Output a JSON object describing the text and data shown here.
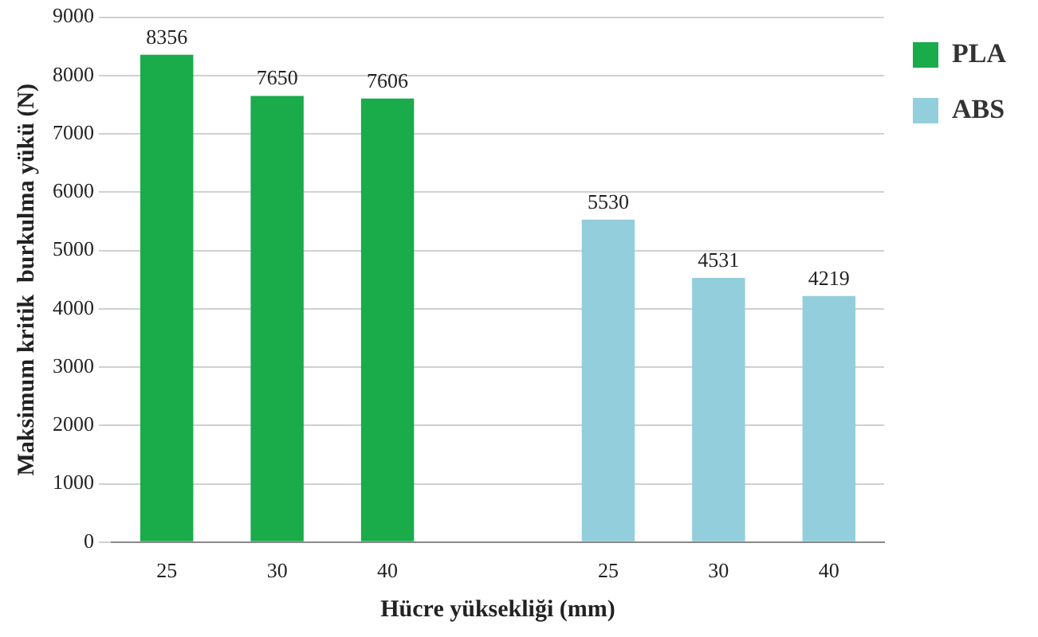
{
  "chart_data": {
    "type": "bar",
    "xlabel": "Hücre yüksekliği (mm)",
    "ylabel": "Maksimum kritik  burkulma yükü (N)",
    "categories": [
      "25",
      "30",
      "40",
      null,
      "25",
      "30",
      "40"
    ],
    "series": [
      {
        "name": "PLA",
        "color": "#1aab4b",
        "values": [
          8356,
          7650,
          7606,
          null,
          null,
          null,
          null
        ]
      },
      {
        "name": "ABS",
        "color": "#93cedd",
        "values": [
          null,
          null,
          null,
          null,
          5530,
          4531,
          4219
        ]
      }
    ],
    "ylim": [
      0,
      9000
    ],
    "yticks": [
      0,
      1000,
      2000,
      3000,
      4000,
      5000,
      6000,
      7000,
      8000,
      9000
    ],
    "grid": "y",
    "legend": "top right",
    "data_labels": true
  }
}
